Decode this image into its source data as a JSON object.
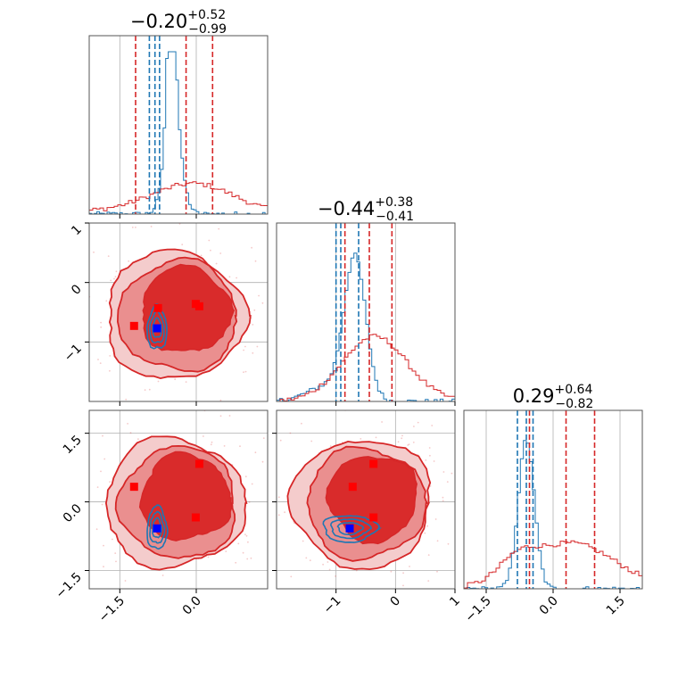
{
  "chart_data": {
    "type": "corner",
    "colors": {
      "red": "#d62728",
      "blue": "#1f77b4",
      "red_fill_1": "#f4cccc",
      "red_fill_2": "#ea8f8f",
      "red_fill_3": "#d92b2b",
      "point_blue": "#0000ff",
      "point_red": "#ff0000"
    },
    "parameters": [
      {
        "title_main": "−0.20",
        "title_sup": "+0.52",
        "title_sub": "−0.99",
        "xlim": [
          -2.1,
          1.4
        ],
        "ticks": [
          -1.5,
          0.0
        ],
        "tick_labels": [
          "−1.5",
          "0.0"
        ],
        "blue_quantiles": [
          -0.92,
          -0.81,
          -0.72
        ],
        "red_quantiles": [
          -1.19,
          -0.2,
          0.32
        ]
      },
      {
        "title_main": "−0.44",
        "title_sup": "+0.38",
        "title_sub": "−0.41",
        "xlim": [
          -2.0,
          1.0
        ],
        "ticks": [
          -1,
          0,
          1
        ],
        "tick_labels": [
          "−1",
          "0",
          "1"
        ],
        "blue_quantiles": [
          -1.0,
          -0.92,
          -0.62
        ],
        "red_quantiles": [
          -0.85,
          -0.44,
          -0.06
        ]
      },
      {
        "title_main": "0.29",
        "title_sup": "+0.64",
        "title_sub": "−0.82",
        "xlim": [
          -2.0,
          2.0
        ],
        "ticks": [
          -1.5,
          0.0,
          1.5
        ],
        "tick_labels": [
          "−1.5",
          "0.0",
          "1.5"
        ],
        "blue_quantiles": [
          -0.8,
          -0.6,
          -0.45
        ],
        "red_quantiles": [
          -0.53,
          0.29,
          0.93
        ]
      }
    ],
    "y_axes": [
      {
        "row": 1,
        "ylim": [
          -2.0,
          1.0
        ],
        "ticks": [
          1,
          0,
          -1
        ],
        "tick_labels": [
          "1",
          "0",
          "−1"
        ]
      },
      {
        "row": 2,
        "ylim": [
          -1.9,
          2.0
        ],
        "ticks": [
          1.5,
          0.0,
          -1.5
        ],
        "tick_labels": [
          "1.5",
          "0.0",
          "−1.5"
        ]
      }
    ],
    "scatter_2d": [
      {
        "panel": "p1_vs_p0",
        "blue_point": [
          -0.77,
          -0.77
        ],
        "red_points": [
          [
            -1.22,
            -0.73
          ],
          [
            -0.75,
            -0.43
          ],
          [
            -0.01,
            -0.36
          ],
          [
            0.06,
            -0.4
          ]
        ]
      },
      {
        "panel": "p2_vs_p0",
        "blue_point": [
          -0.77,
          -0.58
        ],
        "red_points": [
          [
            -1.22,
            0.33
          ],
          [
            0.06,
            0.83
          ],
          [
            -0.01,
            -0.34
          ]
        ]
      },
      {
        "panel": "p2_vs_p1",
        "blue_point": [
          -0.77,
          -0.58
        ],
        "red_points": [
          [
            -0.72,
            0.33
          ],
          [
            -0.37,
            0.83
          ],
          [
            -0.37,
            -0.34
          ]
        ]
      }
    ]
  }
}
